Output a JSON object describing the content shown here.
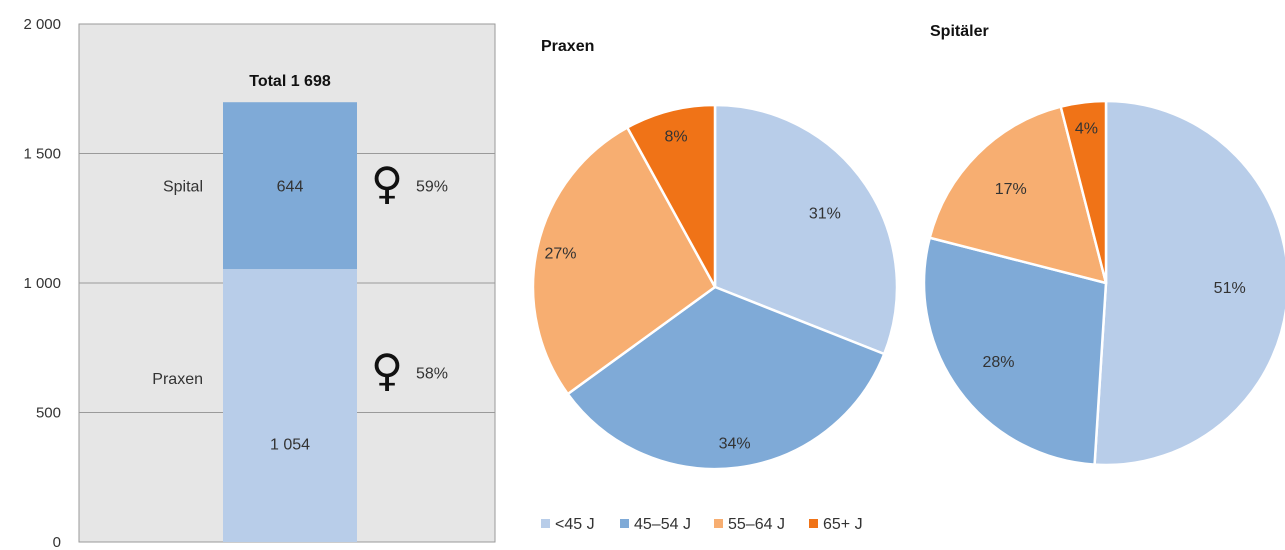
{
  "chart_data": [
    {
      "type": "bar",
      "stacked": true,
      "categories": [
        ""
      ],
      "series": [
        {
          "name": "Praxen",
          "values": [
            1054
          ],
          "color": "#b8cde9",
          "label": "1 054",
          "female_share": "58%"
        },
        {
          "name": "Spital",
          "values": [
            644
          ],
          "color": "#7faad7",
          "label": "644",
          "female_share": "59%"
        }
      ],
      "total_label": "Total 1 698",
      "ylim": [
        0,
        2000
      ],
      "yticks": [
        0,
        500,
        1000,
        1500,
        2000
      ],
      "ytick_labels": [
        "0",
        "500",
        "1 000",
        "1 500",
        "2 000"
      ],
      "grid": true,
      "female_symbol": "♀"
    },
    {
      "type": "pie",
      "title": "Praxen",
      "labels": [
        "<45 J",
        "45–54 J",
        "55–64 J",
        "65+ J"
      ],
      "values": [
        31,
        34,
        27,
        8
      ],
      "value_labels": [
        "31%",
        "34%",
        "27%",
        "8%"
      ]
    },
    {
      "type": "pie",
      "title": "Spitäler",
      "labels": [
        "<45 J",
        "45–54 J",
        "55–64 J",
        "65+ J"
      ],
      "values": [
        51,
        28,
        17,
        4
      ],
      "value_labels": [
        "51%",
        "28%",
        "17%",
        "4%"
      ]
    }
  ],
  "legend": {
    "placement": "bottom",
    "items": [
      {
        "label": "<45 J",
        "color": "#b8cde9"
      },
      {
        "label": "45–54 J",
        "color": "#7faad7"
      },
      {
        "label": "55–64 J",
        "color": "#f7ae71"
      },
      {
        "label": "65+ J",
        "color": "#f07317"
      }
    ]
  }
}
